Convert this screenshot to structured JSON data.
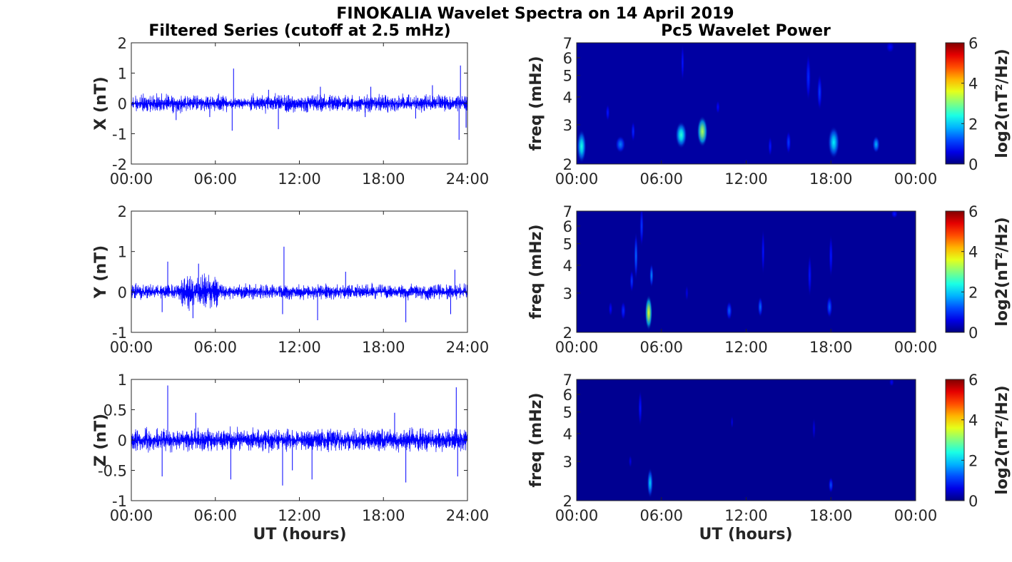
{
  "figure": {
    "title": "FINOKALIA Wavelet Spectra on 14 April 2019",
    "left_column_title": "Filtered Series (cutoff at 2.5 mHz)",
    "right_column_title": "Pc5 Wavelet Power",
    "xlabel": "UT (hours)"
  },
  "chart_data": [
    {
      "type": "line",
      "component": "X",
      "ylabel": "X (nT)",
      "x_range_hours": [
        0,
        24
      ],
      "x_ticks": [
        "00:00",
        "06:00",
        "12:00",
        "18:00",
        "24:00"
      ],
      "ylim": [
        -2,
        2
      ],
      "y_ticks": [
        "-2",
        "-1",
        "0",
        "1",
        "2"
      ],
      "series_color": "#0000ff",
      "baseline_amplitude_nT": 0.15,
      "spikes": [
        {
          "t": 7.3,
          "v": 1.15
        },
        {
          "t": 7.2,
          "v": -0.9
        },
        {
          "t": 10.5,
          "v": -0.85
        },
        {
          "t": 3.2,
          "v": -0.55
        },
        {
          "t": 5.6,
          "v": -0.45
        },
        {
          "t": 13.5,
          "v": 0.55
        },
        {
          "t": 17.1,
          "v": 0.55
        },
        {
          "t": 20.3,
          "v": -0.5
        },
        {
          "t": 21.5,
          "v": 0.6
        },
        {
          "t": 23.5,
          "v": 1.25
        },
        {
          "t": 23.4,
          "v": -1.2
        },
        {
          "t": 23.9,
          "v": -0.8
        },
        {
          "t": 16.7,
          "v": -0.45
        },
        {
          "t": 9.8,
          "v": 0.45
        }
      ]
    },
    {
      "type": "line",
      "component": "Y",
      "ylabel": "Y (nT)",
      "x_range_hours": [
        0,
        24
      ],
      "x_ticks": [
        "00:00",
        "06:00",
        "12:00",
        "18:00",
        "24:00"
      ],
      "ylim": [
        -1,
        2
      ],
      "y_ticks": [
        "-1",
        "0",
        "1",
        "2"
      ],
      "series_color": "#0000ff",
      "baseline_amplitude_nT": 0.1,
      "spikes": [
        {
          "t": 10.9,
          "v": 1.12
        },
        {
          "t": 2.6,
          "v": 0.75
        },
        {
          "t": 4.8,
          "v": 0.7
        },
        {
          "t": 4.4,
          "v": -0.65
        },
        {
          "t": 10.8,
          "v": -0.55
        },
        {
          "t": 13.3,
          "v": -0.7
        },
        {
          "t": 15.3,
          "v": 0.5
        },
        {
          "t": 19.6,
          "v": -0.75
        },
        {
          "t": 22.8,
          "v": -0.55
        },
        {
          "t": 23.1,
          "v": 0.55
        },
        {
          "t": 2.2,
          "v": -0.5
        },
        {
          "t": 6.1,
          "v": -0.35
        }
      ]
    },
    {
      "type": "line",
      "component": "Z",
      "ylabel": "Z (nT)",
      "x_range_hours": [
        0,
        24
      ],
      "x_ticks": [
        "00:00",
        "06:00",
        "12:00",
        "18:00",
        "24:00"
      ],
      "ylim": [
        -1,
        1
      ],
      "y_ticks": [
        "-1",
        "-0.5",
        "0",
        "0.5",
        "1"
      ],
      "series_color": "#0000ff",
      "baseline_amplitude_nT": 0.1,
      "spikes": [
        {
          "t": 2.6,
          "v": 0.9
        },
        {
          "t": 2.2,
          "v": -0.6
        },
        {
          "t": 7.1,
          "v": -0.65
        },
        {
          "t": 10.8,
          "v": -0.75
        },
        {
          "t": 12.9,
          "v": -0.65
        },
        {
          "t": 19.6,
          "v": -0.7
        },
        {
          "t": 18.8,
          "v": 0.45
        },
        {
          "t": 23.2,
          "v": 0.87
        },
        {
          "t": 23.3,
          "v": -0.6
        },
        {
          "t": 11.5,
          "v": -0.5
        },
        {
          "t": 4.6,
          "v": 0.45
        }
      ]
    },
    {
      "type": "heatmap",
      "component": "X",
      "ylabel": "freq (mHz)",
      "y_scale": "log",
      "ylim": [
        2,
        7
      ],
      "y_ticks": [
        "2",
        "3",
        "4",
        "5",
        "6",
        "7"
      ],
      "x_ticks": [
        "00:00",
        "06:00",
        "12:00",
        "18:00",
        "00:00"
      ],
      "colorbar_label": "log2(nT²/Hz)",
      "colorbar_range": [
        0,
        6
      ],
      "colorbar_ticks": [
        "0",
        "2",
        "4",
        "6"
      ],
      "colormap": "jet",
      "background_level": 0.2,
      "blobs": [
        {
          "t": 0.35,
          "f": 2.4,
          "dt": 0.28,
          "df": 0.42,
          "level": 2.4
        },
        {
          "t": 2.2,
          "f": 3.4,
          "dt": 0.12,
          "df": 0.3,
          "level": 0.9
        },
        {
          "t": 3.1,
          "f": 2.45,
          "dt": 0.3,
          "df": 0.22,
          "level": 1.5
        },
        {
          "t": 4.0,
          "f": 2.8,
          "dt": 0.12,
          "df": 0.3,
          "level": 1.0
        },
        {
          "t": 7.4,
          "f": 2.7,
          "dt": 0.35,
          "df": 0.38,
          "level": 2.5
        },
        {
          "t": 7.5,
          "f": 5.7,
          "dt": 0.1,
          "df": 1.1,
          "level": 0.9
        },
        {
          "t": 8.9,
          "f": 2.8,
          "dt": 0.32,
          "df": 0.45,
          "level": 3.3
        },
        {
          "t": 10.0,
          "f": 3.6,
          "dt": 0.12,
          "df": 0.25,
          "level": 0.8
        },
        {
          "t": 13.7,
          "f": 2.4,
          "dt": 0.12,
          "df": 0.25,
          "level": 0.9
        },
        {
          "t": 15.0,
          "f": 2.5,
          "dt": 0.15,
          "df": 0.3,
          "level": 1.1
        },
        {
          "t": 16.4,
          "f": 4.9,
          "dt": 0.15,
          "df": 1.2,
          "level": 1.0
        },
        {
          "t": 17.2,
          "f": 4.2,
          "dt": 0.15,
          "df": 0.8,
          "level": 1.1
        },
        {
          "t": 18.2,
          "f": 2.5,
          "dt": 0.35,
          "df": 0.42,
          "level": 2.2
        },
        {
          "t": 21.2,
          "f": 2.45,
          "dt": 0.22,
          "df": 0.22,
          "level": 1.8
        },
        {
          "t": 22.2,
          "f": 6.7,
          "dt": 0.25,
          "df": 0.4,
          "level": 0.8
        }
      ]
    },
    {
      "type": "heatmap",
      "component": "Y",
      "ylabel": "freq (mHz)",
      "y_scale": "log",
      "ylim": [
        2,
        7
      ],
      "y_ticks": [
        "2",
        "3",
        "4",
        "5",
        "6",
        "7"
      ],
      "x_ticks": [
        "00:00",
        "06:00",
        "12:00",
        "18:00",
        "00:00"
      ],
      "colorbar_label": "log2(nT²/Hz)",
      "colorbar_range": [
        0,
        6
      ],
      "colorbar_ticks": [
        "0",
        "2",
        "4",
        "6"
      ],
      "colormap": "jet",
      "background_level": 0.15,
      "blobs": [
        {
          "t": 2.4,
          "f": 2.55,
          "dt": 0.12,
          "df": 0.2,
          "level": 0.8
        },
        {
          "t": 3.3,
          "f": 2.5,
          "dt": 0.15,
          "df": 0.25,
          "level": 1.0
        },
        {
          "t": 3.9,
          "f": 3.4,
          "dt": 0.12,
          "df": 0.4,
          "level": 1.1
        },
        {
          "t": 4.2,
          "f": 4.4,
          "dt": 0.12,
          "df": 1.1,
          "level": 1.4
        },
        {
          "t": 4.6,
          "f": 6.0,
          "dt": 0.12,
          "df": 1.3,
          "level": 1.1
        },
        {
          "t": 5.1,
          "f": 2.45,
          "dt": 0.22,
          "df": 0.45,
          "level": 3.6
        },
        {
          "t": 5.3,
          "f": 3.6,
          "dt": 0.12,
          "df": 0.45,
          "level": 1.6
        },
        {
          "t": 7.8,
          "f": 3.0,
          "dt": 0.1,
          "df": 0.25,
          "level": 0.6
        },
        {
          "t": 10.8,
          "f": 2.5,
          "dt": 0.18,
          "df": 0.25,
          "level": 1.3
        },
        {
          "t": 13.0,
          "f": 2.6,
          "dt": 0.15,
          "df": 0.28,
          "level": 1.4
        },
        {
          "t": 13.2,
          "f": 4.6,
          "dt": 0.1,
          "df": 1.1,
          "level": 0.9
        },
        {
          "t": 16.5,
          "f": 3.6,
          "dt": 0.12,
          "df": 0.8,
          "level": 0.9
        },
        {
          "t": 17.9,
          "f": 2.6,
          "dt": 0.18,
          "df": 0.3,
          "level": 1.3
        },
        {
          "t": 18.0,
          "f": 4.4,
          "dt": 0.12,
          "df": 1.0,
          "level": 0.9
        },
        {
          "t": 22.5,
          "f": 6.8,
          "dt": 0.2,
          "df": 0.3,
          "level": 0.9
        }
      ]
    },
    {
      "type": "heatmap",
      "component": "Z",
      "ylabel": "freq (mHz)",
      "y_scale": "log",
      "ylim": [
        2,
        7
      ],
      "y_ticks": [
        "2",
        "3",
        "4",
        "5",
        "6",
        "7"
      ],
      "x_ticks": [
        "00:00",
        "06:00",
        "12:00",
        "18:00",
        "00:00"
      ],
      "colorbar_label": "log2(nT²/Hz)",
      "colorbar_range": [
        0,
        6
      ],
      "colorbar_ticks": [
        "0",
        "2",
        "4",
        "6"
      ],
      "colormap": "jet",
      "background_level": 0.1,
      "blobs": [
        {
          "t": 3.8,
          "f": 3.0,
          "dt": 0.1,
          "df": 0.2,
          "level": 0.6
        },
        {
          "t": 4.5,
          "f": 5.2,
          "dt": 0.12,
          "df": 1.0,
          "level": 0.9
        },
        {
          "t": 5.2,
          "f": 2.4,
          "dt": 0.18,
          "df": 0.38,
          "level": 2.0
        },
        {
          "t": 11.0,
          "f": 4.5,
          "dt": 0.08,
          "df": 0.3,
          "level": 0.6
        },
        {
          "t": 16.8,
          "f": 4.2,
          "dt": 0.1,
          "df": 0.5,
          "level": 0.6
        },
        {
          "t": 18.0,
          "f": 2.35,
          "dt": 0.15,
          "df": 0.2,
          "level": 1.2
        },
        {
          "t": 22.3,
          "f": 6.8,
          "dt": 0.15,
          "df": 0.3,
          "level": 0.7
        }
      ]
    }
  ]
}
